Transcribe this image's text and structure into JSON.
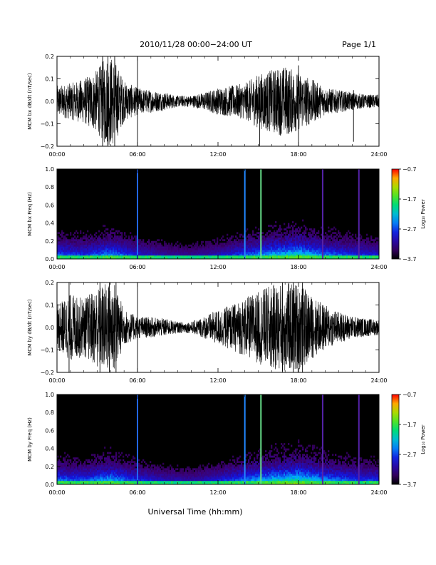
{
  "header": {
    "title": "2010/11/28  00:00−24:00 UT",
    "page": "Page 1/1"
  },
  "footer": {
    "xlabel": "Universal Time (hh:mm)"
  },
  "chart_data": [
    {
      "type": "line",
      "ylabel": "MCM bx dB/dt (nT/sec)",
      "x_tick_labels": [
        "00:00",
        "06:00",
        "12:00",
        "18:00",
        "24:00"
      ],
      "y_tick_labels": [
        "0.2",
        "0.1",
        "0.0",
        "−0.1",
        "−0.2"
      ],
      "xlim_hours": [
        0,
        24
      ],
      "ylim": [
        -0.2,
        0.2
      ],
      "envelope": [
        {
          "t": 0,
          "amp": 0.07
        },
        {
          "t": 1,
          "amp": 0.08
        },
        {
          "t": 2,
          "amp": 0.1
        },
        {
          "t": 3,
          "amp": 0.14
        },
        {
          "t": 3.6,
          "amp": 0.2
        },
        {
          "t": 4.2,
          "amp": 0.2
        },
        {
          "t": 5,
          "amp": 0.09
        },
        {
          "t": 6,
          "amp": 0.06
        },
        {
          "t": 7,
          "amp": 0.05
        },
        {
          "t": 8,
          "amp": 0.04
        },
        {
          "t": 9,
          "amp": 0.025
        },
        {
          "t": 10,
          "amp": 0.025
        },
        {
          "t": 11,
          "amp": 0.04
        },
        {
          "t": 12,
          "amp": 0.06
        },
        {
          "t": 13,
          "amp": 0.07
        },
        {
          "t": 14,
          "amp": 0.08
        },
        {
          "t": 15,
          "amp": 0.12
        },
        {
          "t": 16,
          "amp": 0.14
        },
        {
          "t": 17,
          "amp": 0.16
        },
        {
          "t": 18,
          "amp": 0.13
        },
        {
          "t": 19,
          "amp": 0.1
        },
        {
          "t": 20,
          "amp": 0.06
        },
        {
          "t": 21,
          "amp": 0.05
        },
        {
          "t": 22,
          "amp": 0.04
        },
        {
          "t": 23,
          "amp": 0.03
        },
        {
          "t": 24,
          "amp": 0.03
        }
      ],
      "spikes": [
        {
          "t": 3.4,
          "min": -0.2,
          "max": 0.2
        },
        {
          "t": 3.8,
          "min": -0.2,
          "max": 0.2
        },
        {
          "t": 4.3,
          "min": -0.2,
          "max": 0.2
        },
        {
          "t": 6.0,
          "min": -0.2,
          "max": 0.2
        },
        {
          "t": 15.1,
          "min": -0.2,
          "max": 0.06
        },
        {
          "t": 18.0,
          "min": -0.2,
          "max": 0.16
        },
        {
          "t": 22.1,
          "min": -0.18,
          "max": 0.05
        }
      ]
    },
    {
      "type": "heatmap",
      "ylabel": "MCM bx Freq (Hz)",
      "x_tick_labels": [
        "00:00",
        "06:00",
        "12:00",
        "18:00",
        "24:00"
      ],
      "y_tick_labels": [
        "1.0",
        "0.8",
        "0.6",
        "0.4",
        "0.2",
        "0.0"
      ],
      "xlim_hours": [
        0,
        24
      ],
      "ylim": [
        0,
        1.0
      ],
      "colorbar": {
        "label": "Log₁₀ Power",
        "tick_labels": [
          "−0.7",
          "−1.7",
          "−2.7",
          "−3.7"
        ],
        "range": [
          -3.7,
          -0.7
        ]
      },
      "activity": [
        {
          "t": 0,
          "level": 0.45
        },
        {
          "t": 2,
          "level": 0.4
        },
        {
          "t": 4,
          "level": 0.55
        },
        {
          "t": 6,
          "level": 0.35
        },
        {
          "t": 8,
          "level": 0.25
        },
        {
          "t": 10,
          "level": 0.22
        },
        {
          "t": 12,
          "level": 0.3
        },
        {
          "t": 14,
          "level": 0.45
        },
        {
          "t": 16,
          "level": 0.6
        },
        {
          "t": 18,
          "level": 0.7
        },
        {
          "t": 20,
          "level": 0.5
        },
        {
          "t": 22,
          "level": 0.4
        },
        {
          "t": 24,
          "level": 0.35
        }
      ],
      "vertical_lines": [
        {
          "t": 6.0,
          "color": "#2266ff"
        },
        {
          "t": 14.0,
          "color": "#2288ff"
        },
        {
          "t": 15.2,
          "color": "#66dd88"
        },
        {
          "t": 19.8,
          "color": "#5522aa"
        },
        {
          "t": 22.5,
          "color": "#5522aa"
        }
      ]
    },
    {
      "type": "line",
      "ylabel": "MCM by dB/dt (nT/sec)",
      "x_tick_labels": [
        "00:00",
        "06:00",
        "12:00",
        "18:00",
        "24:00"
      ],
      "y_tick_labels": [
        "0.2",
        "0.1",
        "0.0",
        "−0.1",
        "−0.2"
      ],
      "xlim_hours": [
        0,
        24
      ],
      "ylim": [
        -0.2,
        0.2
      ],
      "envelope": [
        {
          "t": 0,
          "amp": 0.1
        },
        {
          "t": 1,
          "amp": 0.15
        },
        {
          "t": 2,
          "amp": 0.13
        },
        {
          "t": 3,
          "amp": 0.18
        },
        {
          "t": 3.6,
          "amp": 0.2
        },
        {
          "t": 4.3,
          "amp": 0.2
        },
        {
          "t": 5,
          "amp": 0.08
        },
        {
          "t": 6,
          "amp": 0.05
        },
        {
          "t": 7,
          "amp": 0.045
        },
        {
          "t": 8,
          "amp": 0.04
        },
        {
          "t": 9,
          "amp": 0.025
        },
        {
          "t": 10,
          "amp": 0.025
        },
        {
          "t": 11,
          "amp": 0.05
        },
        {
          "t": 12,
          "amp": 0.08
        },
        {
          "t": 13,
          "amp": 0.1
        },
        {
          "t": 14,
          "amp": 0.13
        },
        {
          "t": 15,
          "amp": 0.16
        },
        {
          "t": 16,
          "amp": 0.19
        },
        {
          "t": 17,
          "amp": 0.2
        },
        {
          "t": 18,
          "amp": 0.2
        },
        {
          "t": 19,
          "amp": 0.14
        },
        {
          "t": 20,
          "amp": 0.1
        },
        {
          "t": 21,
          "amp": 0.07
        },
        {
          "t": 22,
          "amp": 0.05
        },
        {
          "t": 23,
          "amp": 0.04
        },
        {
          "t": 24,
          "amp": 0.035
        }
      ],
      "spikes": [
        {
          "t": 0.9,
          "min": -0.2,
          "max": 0.2
        },
        {
          "t": 3.2,
          "min": -0.2,
          "max": 0.2
        },
        {
          "t": 3.9,
          "min": -0.2,
          "max": 0.2
        },
        {
          "t": 4.4,
          "min": -0.2,
          "max": 0.2
        },
        {
          "t": 6.0,
          "min": -0.2,
          "max": 0.2
        },
        {
          "t": 16.8,
          "min": -0.2,
          "max": 0.2
        },
        {
          "t": 17.6,
          "min": -0.2,
          "max": 0.2
        },
        {
          "t": 18.3,
          "min": -0.2,
          "max": 0.2
        }
      ]
    },
    {
      "type": "heatmap",
      "ylabel": "MCM by Freq (Hz)",
      "x_tick_labels": [
        "00:00",
        "06:00",
        "12:00",
        "18:00",
        "24:00"
      ],
      "y_tick_labels": [
        "1.0",
        "0.8",
        "0.6",
        "0.4",
        "0.2",
        "0.0"
      ],
      "xlim_hours": [
        0,
        24
      ],
      "ylim": [
        0,
        1.0
      ],
      "colorbar": {
        "label": "Log₁₀ Power",
        "tick_labels": [
          "−0.7",
          "−1.7",
          "−2.7",
          "−3.7"
        ],
        "range": [
          -3.7,
          -0.7
        ]
      },
      "activity": [
        {
          "t": 0,
          "level": 0.5
        },
        {
          "t": 2,
          "level": 0.45
        },
        {
          "t": 4,
          "level": 0.6
        },
        {
          "t": 6,
          "level": 0.4
        },
        {
          "t": 8,
          "level": 0.3
        },
        {
          "t": 10,
          "level": 0.25
        },
        {
          "t": 12,
          "level": 0.35
        },
        {
          "t": 14,
          "level": 0.5
        },
        {
          "t": 16,
          "level": 0.65
        },
        {
          "t": 18,
          "level": 0.75
        },
        {
          "t": 20,
          "level": 0.55
        },
        {
          "t": 22,
          "level": 0.45
        },
        {
          "t": 24,
          "level": 0.4
        }
      ],
      "vertical_lines": [
        {
          "t": 6.0,
          "color": "#2266ff"
        },
        {
          "t": 14.0,
          "color": "#2288ff"
        },
        {
          "t": 15.2,
          "color": "#66dd88"
        },
        {
          "t": 19.8,
          "color": "#5522aa"
        },
        {
          "t": 22.5,
          "color": "#5522aa"
        }
      ]
    }
  ]
}
